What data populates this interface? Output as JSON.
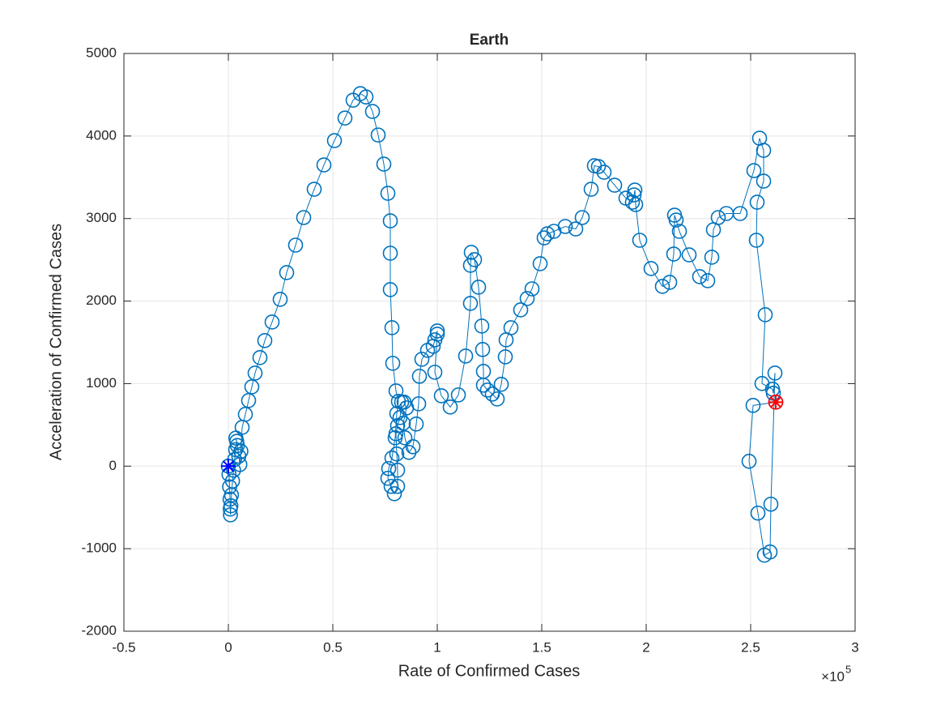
{
  "chart_data": {
    "type": "scatter_line",
    "title": "Earth",
    "xlabel": "Rate of Confirmed Cases",
    "ylabel": "Acceleration of Confirmed Cases",
    "x_multiplier": {
      "base": "×10",
      "exponent": "5"
    },
    "xlim": [
      -50000,
      300000
    ],
    "ylim": [
      -2000,
      5000
    ],
    "xticks": [
      {
        "value": -50000,
        "label": "-0.5"
      },
      {
        "value": 0,
        "label": "0"
      },
      {
        "value": 50000,
        "label": "0.5"
      },
      {
        "value": 100000,
        "label": "1"
      },
      {
        "value": 150000,
        "label": "1.5"
      },
      {
        "value": 200000,
        "label": "2"
      },
      {
        "value": 250000,
        "label": "2.5"
      },
      {
        "value": 300000,
        "label": "3"
      }
    ],
    "yticks": [
      -2000,
      -1000,
      0,
      1000,
      2000,
      3000,
      4000,
      5000
    ],
    "grid": true,
    "start_color": "#0000ff",
    "end_color": "#ff0000",
    "series": [
      {
        "color": "#0072bd",
        "x": [
          0,
          300,
          600,
          800,
          900,
          1000,
          1200,
          1500,
          2000,
          2500,
          3000,
          3500,
          4000,
          3600,
          4300,
          5000,
          5500,
          6000,
          6600,
          8140,
          9690,
          11240,
          12790,
          15120,
          17440,
          20930,
          24810,
          27910,
          32170,
          36050,
          41090,
          45740,
          50780,
          55810,
          59690,
          63180,
          65890,
          68990,
          71710,
          74420,
          76360,
          77520,
          77520,
          77520,
          78300,
          78690,
          80240,
          81400,
          80620,
          79840,
          78300,
          76750,
          76360,
          77910,
          79460,
          81010,
          81010,
          80620,
          80240,
          81010,
          82170,
          82950,
          84110,
          85270,
          83720,
          84500,
          86430,
          88370,
          89920,
          91090,
          91470,
          92640,
          95350,
          98060,
          98840,
          100000,
          100000,
          98840,
          101940,
          106200,
          110080,
          113570,
          115890,
          115890,
          116280,
          117830,
          119770,
          121320,
          121710,
          122100,
          122100,
          124030,
          126360,
          128680,
          130620,
          132560,
          132950,
          135270,
          139920,
          143020,
          145350,
          149230,
          151160,
          152710,
          155820,
          161240,
          166280,
          169380,
          173650,
          175200,
          177130,
          179840,
          184890,
          190310,
          193410,
          194190,
          194580,
          194960,
          196900,
          202330,
          207750,
          211240,
          213180,
          213570,
          214340,
          215890,
          220540,
          225580,
          229460,
          231400,
          232180,
          234500,
          238370,
          244960,
          251550,
          254270,
          256210,
          256210,
          253100,
          252710,
          256980,
          255430,
          260470,
          260860,
          261640,
          259690,
          259300,
          256590,
          253490,
          249230,
          251160,
          262020
        ],
        "values": [
          0,
          -100,
          -250,
          -400,
          -520,
          -590,
          -480,
          -350,
          -180,
          -50,
          80,
          200,
          300,
          340,
          250,
          120,
          20,
          180,
          470,
          628,
          795,
          961,
          1128,
          1315,
          1521,
          1746,
          2021,
          2345,
          2678,
          3012,
          3355,
          3649,
          3944,
          4218,
          4434,
          4513,
          4473,
          4297,
          4012,
          3659,
          3306,
          2972,
          2580,
          2139,
          1677,
          1246,
          912,
          785,
          638,
          343,
          98,
          -29,
          -147,
          -245,
          -334,
          -245,
          -49,
          147,
          392,
          491,
          589,
          775,
          775,
          706,
          520,
          343,
          167,
          235,
          510,
          755,
          1089,
          1295,
          1403,
          1452,
          1530,
          1638,
          1599,
          1138,
          853,
          716,
          863,
          1334,
          1972,
          2433,
          2590,
          2502,
          2168,
          1697,
          1413,
          1148,
          981,
          922,
          873,
          814,
          991,
          1324,
          1530,
          1677,
          1893,
          2031,
          2148,
          2453,
          2766,
          2815,
          2845,
          2904,
          2874,
          3012,
          3355,
          3640,
          3630,
          3561,
          3404,
          3247,
          3198,
          3286,
          3345,
          3169,
          2737,
          2394,
          2178,
          2227,
          2570,
          3041,
          2982,
          2845,
          2560,
          2296,
          2247,
          2531,
          2864,
          3012,
          3061,
          3061,
          3581,
          3973,
          3826,
          3453,
          3198,
          2737,
          1834,
          1001,
          932,
          883,
          1128,
          -461,
          -1040,
          -1079,
          -569,
          59,
          736,
          775
        ]
      }
    ]
  }
}
